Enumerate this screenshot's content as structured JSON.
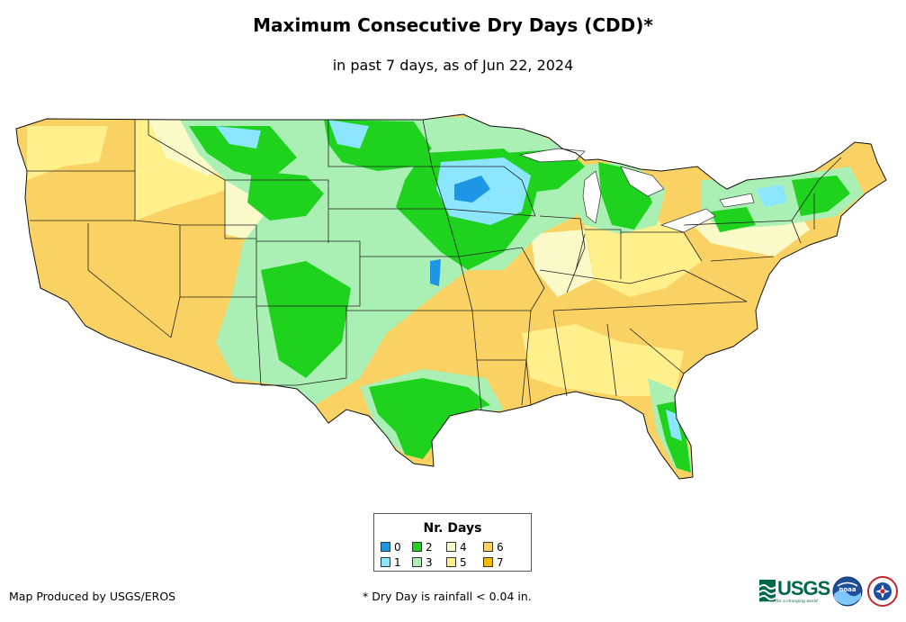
{
  "title": "Maximum Consecutive Dry Days (CDD)*",
  "subtitle": "in past 7 days, as of Jun 22, 2024",
  "legend": {
    "title": "Nr. Days",
    "items": [
      {
        "label": "0",
        "color": "#1e96e6"
      },
      {
        "label": "1",
        "color": "#8ce6ff"
      },
      {
        "label": "2",
        "color": "#1ed21e"
      },
      {
        "label": "3",
        "color": "#aaf0b4"
      },
      {
        "label": "4",
        "color": "#fafac8"
      },
      {
        "label": "5",
        "color": "#fff08c"
      },
      {
        "label": "6",
        "color": "#fad264"
      },
      {
        "label": "7",
        "color": "#f5b905"
      }
    ]
  },
  "credit": "Map Produced by USGS/EROS",
  "footnote": "* Dry Day is rainfall < 0.04 in.",
  "logos": {
    "usgs_text": "USGS",
    "usgs_tagline": "science for a changing world",
    "noaa_text": "noaa",
    "noaa_icon": "noaa-logo",
    "nws_icon": "nws-logo"
  },
  "map": {
    "region": "Contiguous United States",
    "dominant_west": "6",
    "dominant_plains_midwest": "2-3",
    "dominant_southeast": "5-6"
  }
}
